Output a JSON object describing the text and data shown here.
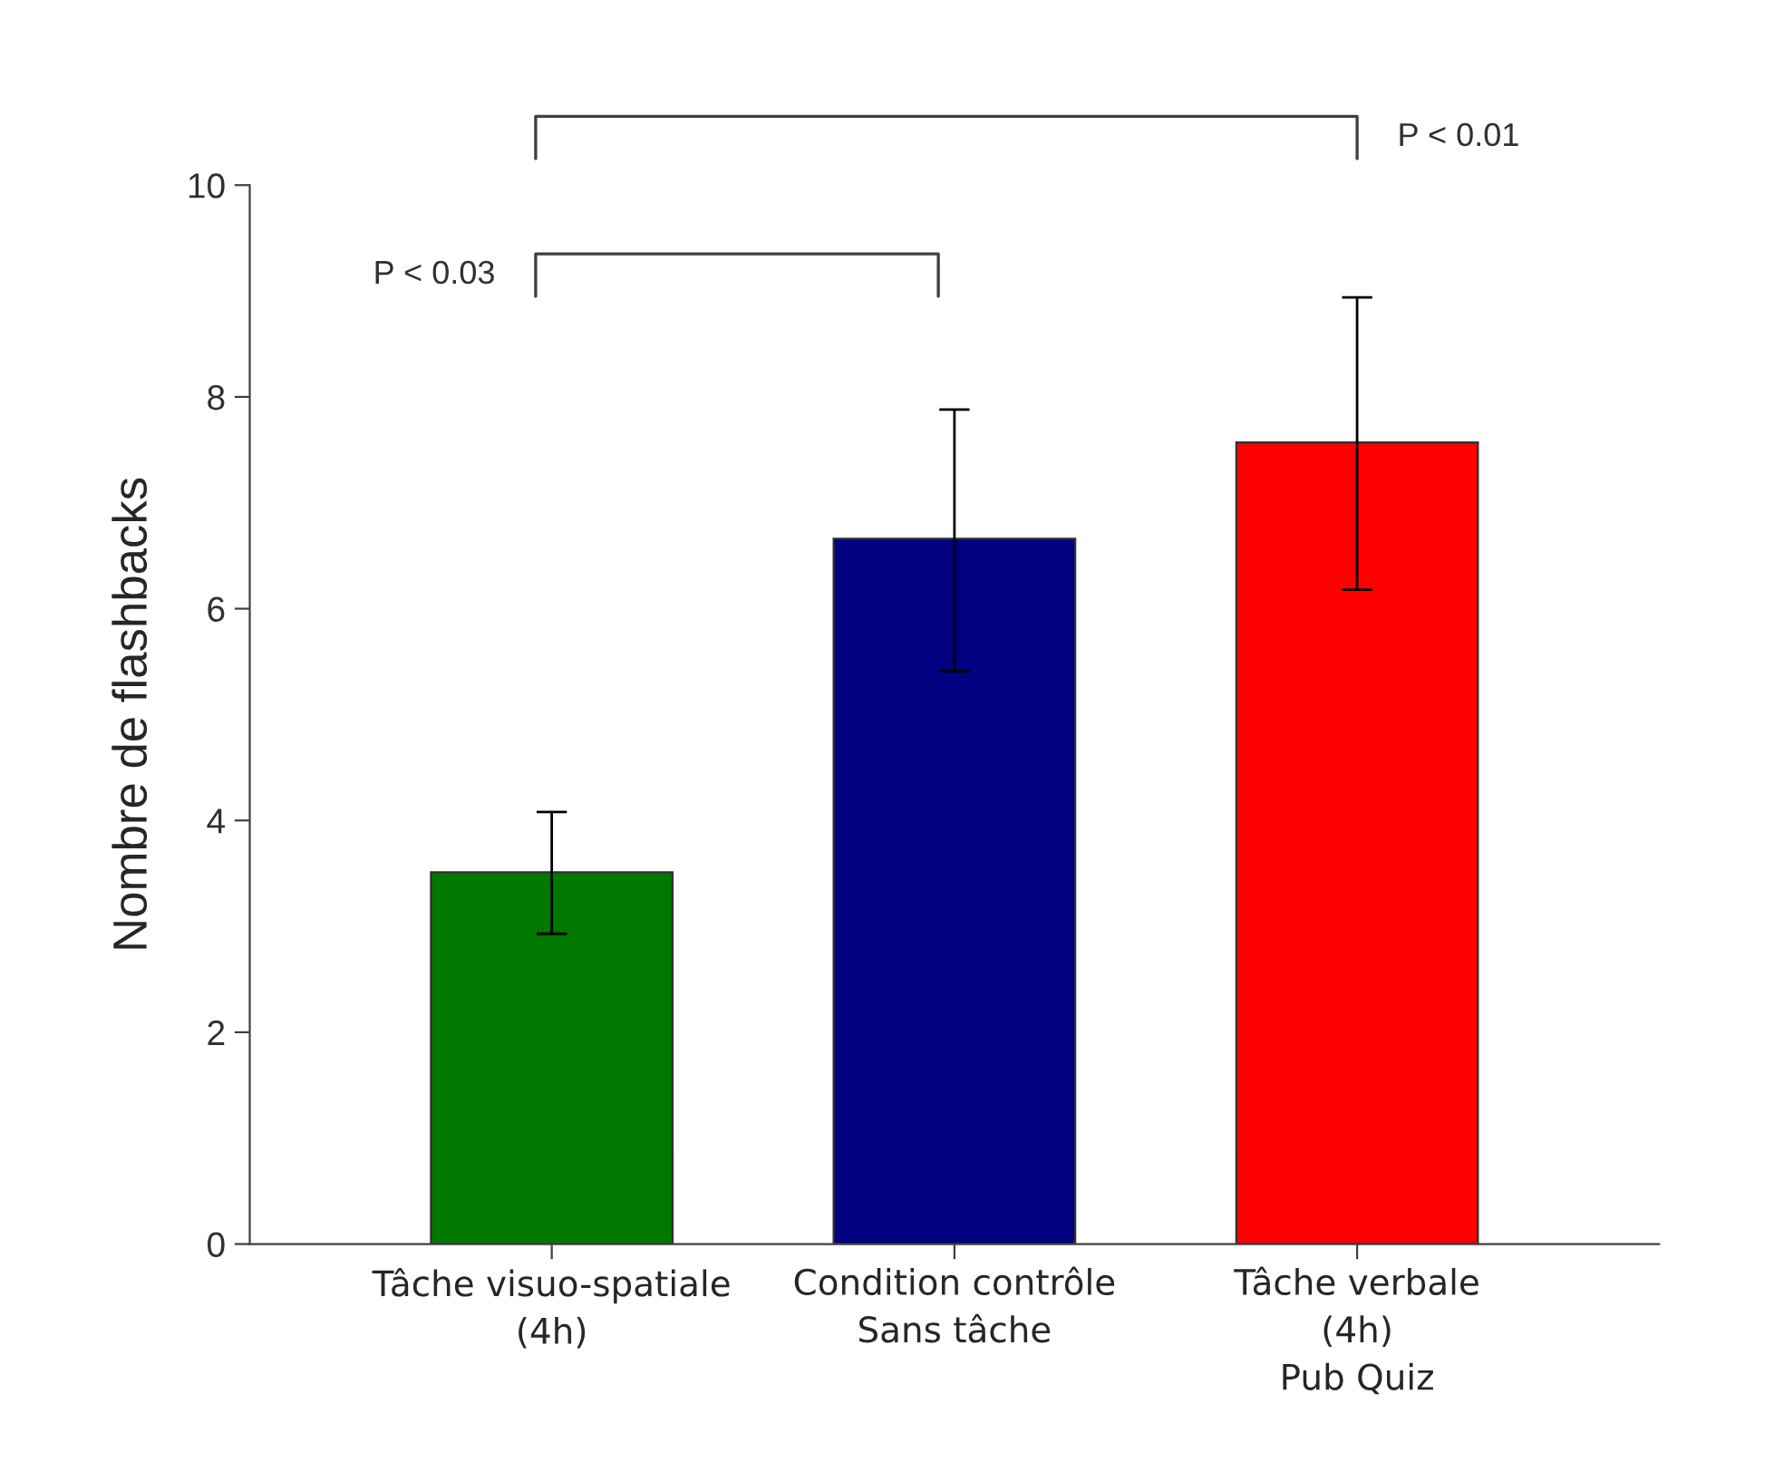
{
  "chart_data": {
    "type": "bar",
    "ylabel": "Nombre de flashbacks",
    "categories": [
      "Tâche visuo-spatiale\n(4h)",
      "Condition contrôle\nSans tâche",
      "Tâche verbale\n(4h)\nPub Quiz"
    ],
    "values": [
      3.51,
      6.66,
      7.57
    ],
    "colors": [
      "#007800",
      "#000080",
      "#ff0000"
    ],
    "errors": [
      [
        2.93,
        4.08
      ],
      [
        5.41,
        7.88
      ],
      [
        6.18,
        8.94
      ]
    ],
    "ylim": [
      0,
      10
    ],
    "yticks": [
      0,
      2,
      4,
      6,
      8,
      10
    ],
    "grid": false,
    "annotations": [
      "P < 0.03",
      "P < 0.01"
    ]
  }
}
